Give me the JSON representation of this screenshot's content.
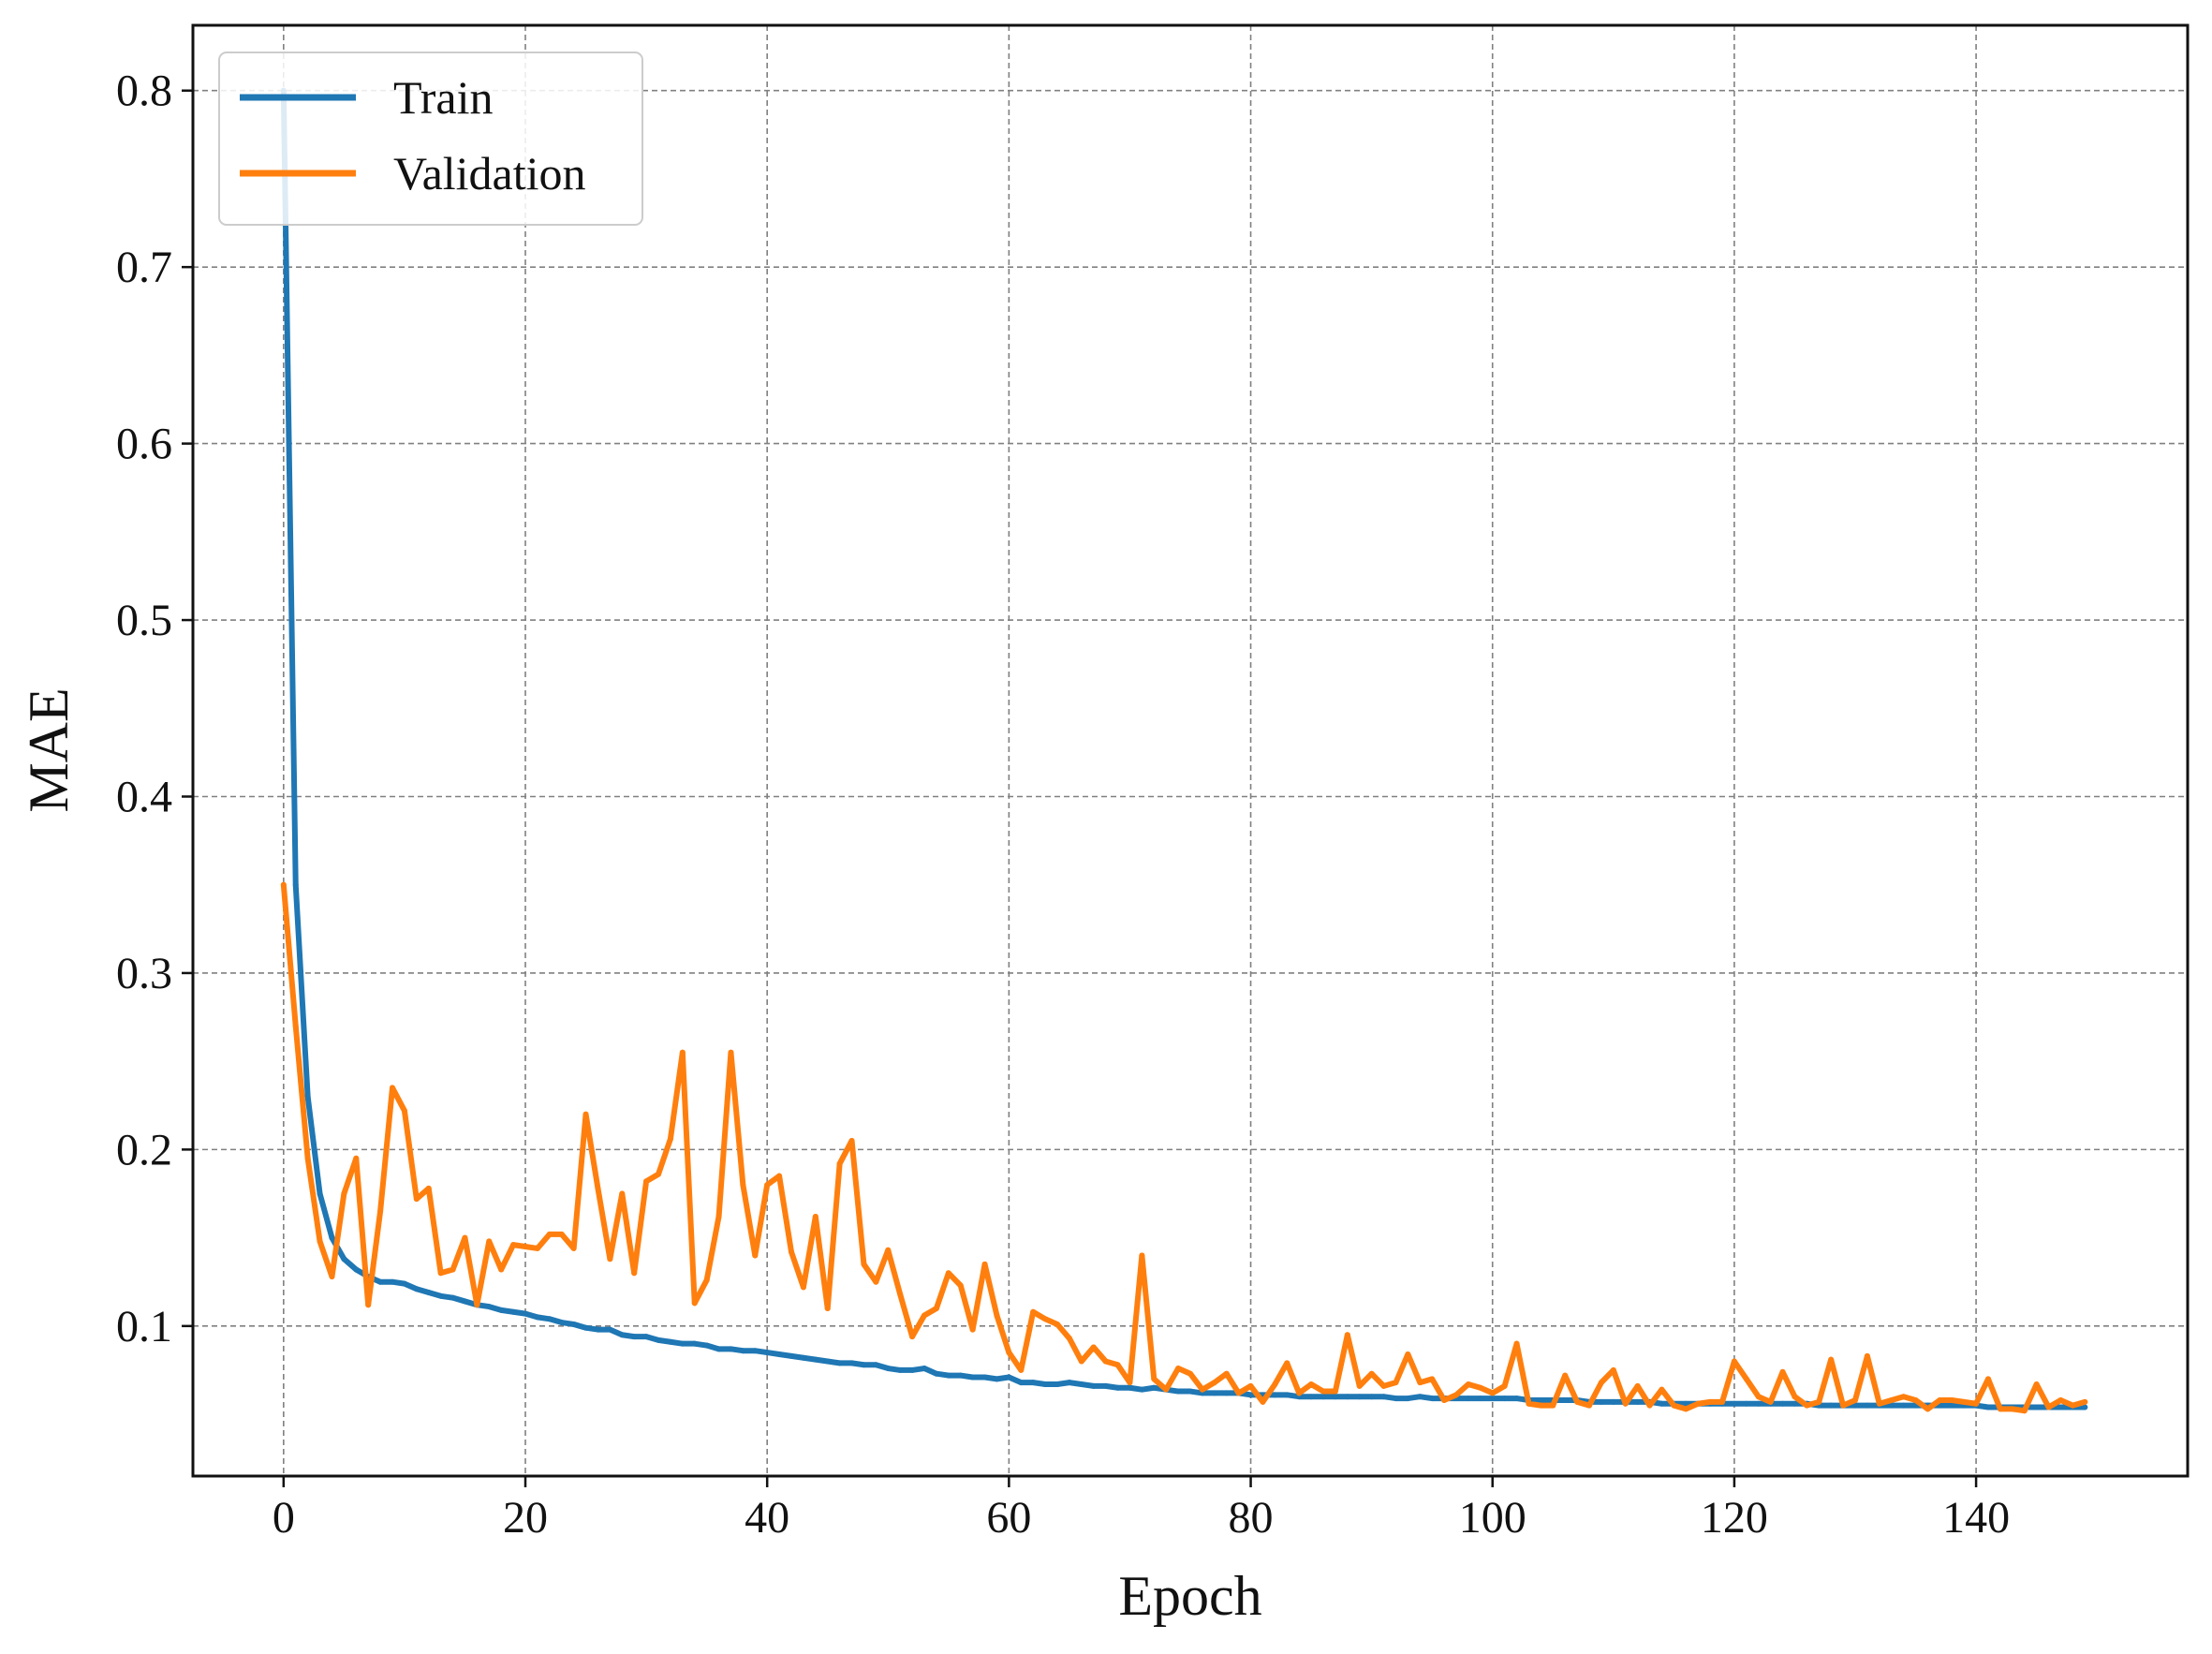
{
  "chart_data": {
    "type": "line",
    "xlabel": "Epoch",
    "ylabel": "MAE",
    "xlim": [
      -7.5,
      157.5
    ],
    "ylim": [
      0.015,
      0.837
    ],
    "xticks": [
      0,
      20,
      40,
      60,
      80,
      100,
      120,
      140
    ],
    "yticks": [
      0.1,
      0.2,
      0.3,
      0.4,
      0.5,
      0.6,
      0.7,
      0.8
    ],
    "xtick_labels": [
      "0",
      "20",
      "40",
      "60",
      "80",
      "100",
      "120",
      "140"
    ],
    "ytick_labels": [
      "0.1",
      "0.2",
      "0.3",
      "0.4",
      "0.5",
      "0.6",
      "0.7",
      "0.8"
    ],
    "grid": true,
    "legend_position": "top-left",
    "x": [
      0,
      1,
      2,
      3,
      4,
      5,
      6,
      7,
      8,
      9,
      10,
      11,
      12,
      13,
      14,
      15,
      16,
      17,
      18,
      19,
      20,
      21,
      22,
      23,
      24,
      25,
      26,
      27,
      28,
      29,
      30,
      31,
      32,
      33,
      34,
      35,
      36,
      37,
      38,
      39,
      40,
      41,
      42,
      43,
      44,
      45,
      46,
      47,
      48,
      49,
      50,
      51,
      52,
      53,
      54,
      55,
      56,
      57,
      58,
      59,
      60,
      61,
      62,
      63,
      64,
      65,
      66,
      67,
      68,
      69,
      70,
      71,
      72,
      73,
      74,
      75,
      76,
      77,
      78,
      79,
      80,
      81,
      82,
      83,
      84,
      85,
      86,
      87,
      88,
      89,
      90,
      91,
      92,
      93,
      94,
      95,
      96,
      97,
      98,
      99,
      100,
      101,
      102,
      103,
      104,
      105,
      106,
      107,
      108,
      109,
      110,
      111,
      112,
      113,
      114,
      115,
      116,
      117,
      118,
      119,
      120,
      121,
      122,
      123,
      124,
      125,
      126,
      127,
      128,
      129,
      130,
      131,
      132,
      133,
      134,
      135,
      136,
      137,
      138,
      139,
      140,
      141,
      142,
      143,
      144,
      145,
      146,
      147,
      148,
      149
    ],
    "series": [
      {
        "name": "Train",
        "color": "#1f77b4",
        "values": [
          0.8,
          0.35,
          0.23,
          0.175,
          0.15,
          0.138,
          0.132,
          0.128,
          0.125,
          0.125,
          0.124,
          0.121,
          0.119,
          0.117,
          0.116,
          0.114,
          0.112,
          0.111,
          0.109,
          0.108,
          0.107,
          0.105,
          0.104,
          0.102,
          0.101,
          0.099,
          0.098,
          0.098,
          0.095,
          0.094,
          0.094,
          0.092,
          0.091,
          0.09,
          0.09,
          0.089,
          0.087,
          0.087,
          0.086,
          0.086,
          0.085,
          0.084,
          0.083,
          0.082,
          0.081,
          0.08,
          0.079,
          0.079,
          0.078,
          0.078,
          0.076,
          0.075,
          0.075,
          0.076,
          0.073,
          0.072,
          0.072,
          0.071,
          0.071,
          0.07,
          0.071,
          0.068,
          0.068,
          0.067,
          0.067,
          0.068,
          0.067,
          0.066,
          0.066,
          0.065,
          0.065,
          0.064,
          0.065,
          0.064,
          0.063,
          0.063,
          0.062,
          0.062,
          0.062,
          0.062,
          0.061,
          0.061,
          0.061,
          0.061,
          0.06,
          0.06,
          0.06,
          0.06,
          0.06,
          0.06,
          0.06,
          0.06,
          0.059,
          0.059,
          0.06,
          0.059,
          0.059,
          0.059,
          0.059,
          0.059,
          0.059,
          0.059,
          0.059,
          0.058,
          0.058,
          0.058,
          0.058,
          0.058,
          0.057,
          0.057,
          0.057,
          0.057,
          0.057,
          0.057,
          0.056,
          0.056,
          0.056,
          0.056,
          0.056,
          0.056,
          0.056,
          0.056,
          0.056,
          0.056,
          0.056,
          0.056,
          0.056,
          0.055,
          0.055,
          0.055,
          0.055,
          0.055,
          0.055,
          0.055,
          0.055,
          0.055,
          0.055,
          0.055,
          0.055,
          0.055,
          0.055,
          0.054,
          0.054,
          0.054,
          0.054,
          0.054,
          0.054,
          0.054,
          0.054,
          0.054
        ]
      },
      {
        "name": "Validation",
        "color": "#ff7f0e",
        "values": [
          0.35,
          0.27,
          0.195,
          0.148,
          0.128,
          0.175,
          0.195,
          0.112,
          0.165,
          0.235,
          0.222,
          0.172,
          0.178,
          0.13,
          0.132,
          0.15,
          0.112,
          0.148,
          0.132,
          0.146,
          0.145,
          0.144,
          0.152,
          0.152,
          0.144,
          0.22,
          0.178,
          0.138,
          0.175,
          0.13,
          0.182,
          0.186,
          0.206,
          0.255,
          0.113,
          0.126,
          0.162,
          0.255,
          0.18,
          0.14,
          0.18,
          0.185,
          0.142,
          0.122,
          0.162,
          0.11,
          0.192,
          0.205,
          0.135,
          0.125,
          0.143,
          0.118,
          0.094,
          0.106,
          0.11,
          0.13,
          0.123,
          0.098,
          0.135,
          0.106,
          0.085,
          0.075,
          0.108,
          0.104,
          0.101,
          0.093,
          0.08,
          0.088,
          0.08,
          0.078,
          0.068,
          0.14,
          0.07,
          0.064,
          0.076,
          0.073,
          0.064,
          0.068,
          0.073,
          0.062,
          0.066,
          0.057,
          0.067,
          0.079,
          0.062,
          0.067,
          0.063,
          0.063,
          0.095,
          0.066,
          0.073,
          0.066,
          0.068,
          0.084,
          0.068,
          0.07,
          0.058,
          0.061,
          0.067,
          0.065,
          0.062,
          0.066,
          0.09,
          0.056,
          0.055,
          0.055,
          0.072,
          0.057,
          0.055,
          0.068,
          0.075,
          0.056,
          0.066,
          0.055,
          0.064,
          0.055,
          0.053,
          0.056,
          0.057,
          0.057,
          0.08,
          0.07,
          0.06,
          0.057,
          0.074,
          0.06,
          0.055,
          0.057,
          0.081,
          0.055,
          0.058,
          0.083,
          0.056,
          0.058,
          0.06,
          0.058,
          0.053,
          0.058,
          0.058,
          0.057,
          0.056,
          0.07,
          0.053,
          0.053,
          0.052,
          0.067,
          0.054,
          0.058,
          0.055,
          0.057
        ]
      }
    ]
  }
}
